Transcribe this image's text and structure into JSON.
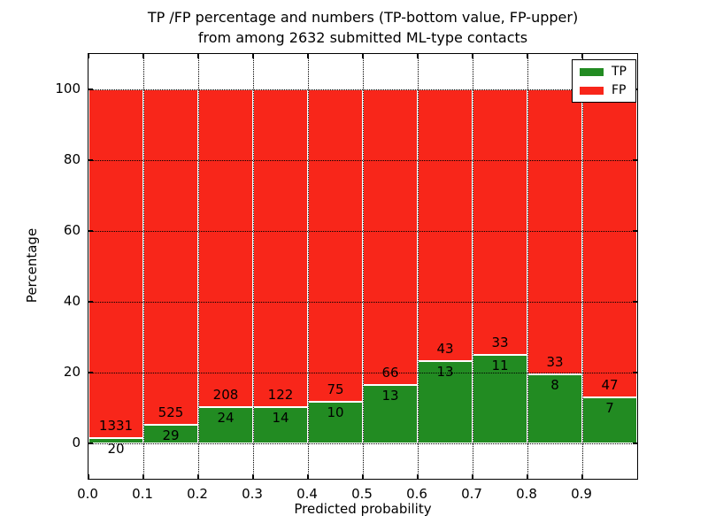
{
  "title": {
    "line1": "TP /FP percentage and numbers (TP-bottom value, FP-upper)",
    "line2": "from among 2632 submitted ML-type contacts"
  },
  "chart_data": {
    "type": "bar",
    "stacked": true,
    "normalized": "each bin stacks to 100%",
    "title": "TP /FP percentage and numbers (TP-bottom value, FP-upper) from among 2632 submitted ML-type contacts",
    "xlabel": "Predicted probability",
    "ylabel": "Percentage",
    "total_contacts": 2632,
    "xlim": [
      0.0,
      1.0
    ],
    "ylim": [
      -10,
      110
    ],
    "yticks": [
      0,
      20,
      40,
      60,
      80,
      100
    ],
    "ytick_labels": [
      "0",
      "20",
      "40",
      "60",
      "80",
      "100"
    ],
    "bin_starts": [
      0.0,
      0.1,
      0.2,
      0.3,
      0.4,
      0.5,
      0.6,
      0.7,
      0.8,
      0.9
    ],
    "bin_width": 0.1,
    "xtick_labels": [
      "0.0",
      "0.1",
      "0.2",
      "0.3",
      "0.4",
      "0.5",
      "0.6",
      "0.7",
      "0.8",
      "0.9"
    ],
    "grid": {
      "style": "dotted",
      "color": "#000000",
      "drawn_over_bars": true
    },
    "legend": {
      "position": "upper right"
    },
    "bar_edge_color": "#ffffff",
    "series": [
      {
        "name": "TP",
        "color": "#228b22",
        "counts": [
          20,
          29,
          24,
          14,
          10,
          13,
          13,
          11,
          8,
          7
        ],
        "pct": [
          1.48,
          5.23,
          10.34,
          10.29,
          11.76,
          16.46,
          23.21,
          25.0,
          19.51,
          12.96
        ]
      },
      {
        "name": "FP",
        "color": "#f8261a",
        "counts": [
          1331,
          525,
          208,
          122,
          75,
          66,
          43,
          33,
          33,
          47
        ],
        "pct": [
          98.52,
          94.77,
          89.66,
          89.71,
          88.24,
          83.54,
          76.79,
          75.0,
          80.49,
          87.04
        ]
      }
    ]
  }
}
